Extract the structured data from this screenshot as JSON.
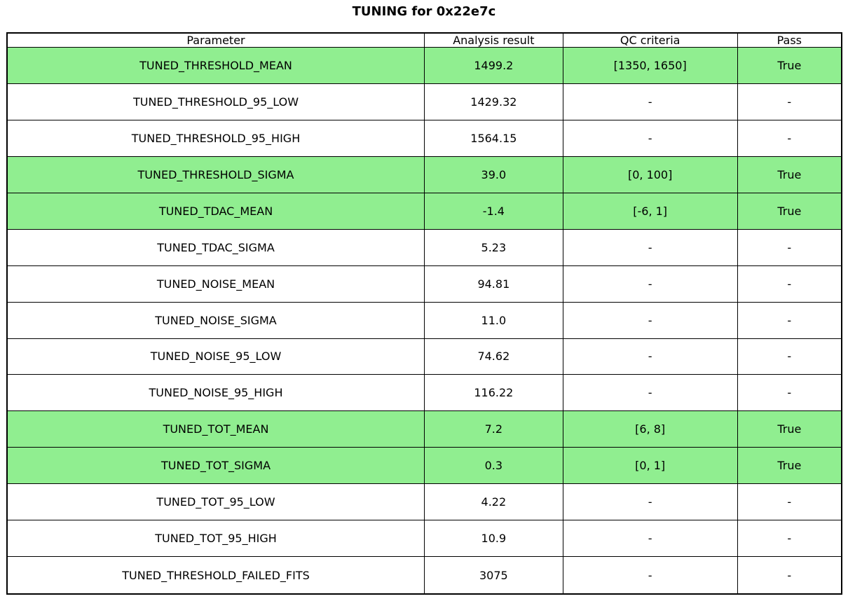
{
  "title": "TUNING for 0x22e7c",
  "colors": {
    "pass_row_background": "#90EE90",
    "border": "#000000",
    "background": "#FFFFFF",
    "text": "#000000"
  },
  "chart_data": {
    "type": "table",
    "title": "TUNING for 0x22e7c",
    "columns": [
      "Parameter",
      "Analysis result",
      "QC criteria",
      "Pass"
    ],
    "rows": [
      {
        "parameter": "TUNED_THRESHOLD_MEAN",
        "analysis_result": "1499.2",
        "qc_criteria": "[1350, 1650]",
        "pass": "True",
        "highlighted": true
      },
      {
        "parameter": "TUNED_THRESHOLD_95_LOW",
        "analysis_result": "1429.32",
        "qc_criteria": "-",
        "pass": "-",
        "highlighted": false
      },
      {
        "parameter": "TUNED_THRESHOLD_95_HIGH",
        "analysis_result": "1564.15",
        "qc_criteria": "-",
        "pass": "-",
        "highlighted": false
      },
      {
        "parameter": "TUNED_THRESHOLD_SIGMA",
        "analysis_result": "39.0",
        "qc_criteria": "[0, 100]",
        "pass": "True",
        "highlighted": true
      },
      {
        "parameter": "TUNED_TDAC_MEAN",
        "analysis_result": "-1.4",
        "qc_criteria": "[-6, 1]",
        "pass": "True",
        "highlighted": true
      },
      {
        "parameter": "TUNED_TDAC_SIGMA",
        "analysis_result": "5.23",
        "qc_criteria": "-",
        "pass": "-",
        "highlighted": false
      },
      {
        "parameter": "TUNED_NOISE_MEAN",
        "analysis_result": "94.81",
        "qc_criteria": "-",
        "pass": "-",
        "highlighted": false
      },
      {
        "parameter": "TUNED_NOISE_SIGMA",
        "analysis_result": "11.0",
        "qc_criteria": "-",
        "pass": "-",
        "highlighted": false
      },
      {
        "parameter": "TUNED_NOISE_95_LOW",
        "analysis_result": "74.62",
        "qc_criteria": "-",
        "pass": "-",
        "highlighted": false
      },
      {
        "parameter": "TUNED_NOISE_95_HIGH",
        "analysis_result": "116.22",
        "qc_criteria": "-",
        "pass": "-",
        "highlighted": false
      },
      {
        "parameter": "TUNED_TOT_MEAN",
        "analysis_result": "7.2",
        "qc_criteria": "[6, 8]",
        "pass": "True",
        "highlighted": true
      },
      {
        "parameter": "TUNED_TOT_SIGMA",
        "analysis_result": "0.3",
        "qc_criteria": "[0, 1]",
        "pass": "True",
        "highlighted": true
      },
      {
        "parameter": "TUNED_TOT_95_LOW",
        "analysis_result": "4.22",
        "qc_criteria": "-",
        "pass": "-",
        "highlighted": false
      },
      {
        "parameter": "TUNED_TOT_95_HIGH",
        "analysis_result": "10.9",
        "qc_criteria": "-",
        "pass": "-",
        "highlighted": false
      },
      {
        "parameter": "TUNED_THRESHOLD_FAILED_FITS",
        "analysis_result": "3075",
        "qc_criteria": "-",
        "pass": "-",
        "highlighted": false
      }
    ]
  }
}
